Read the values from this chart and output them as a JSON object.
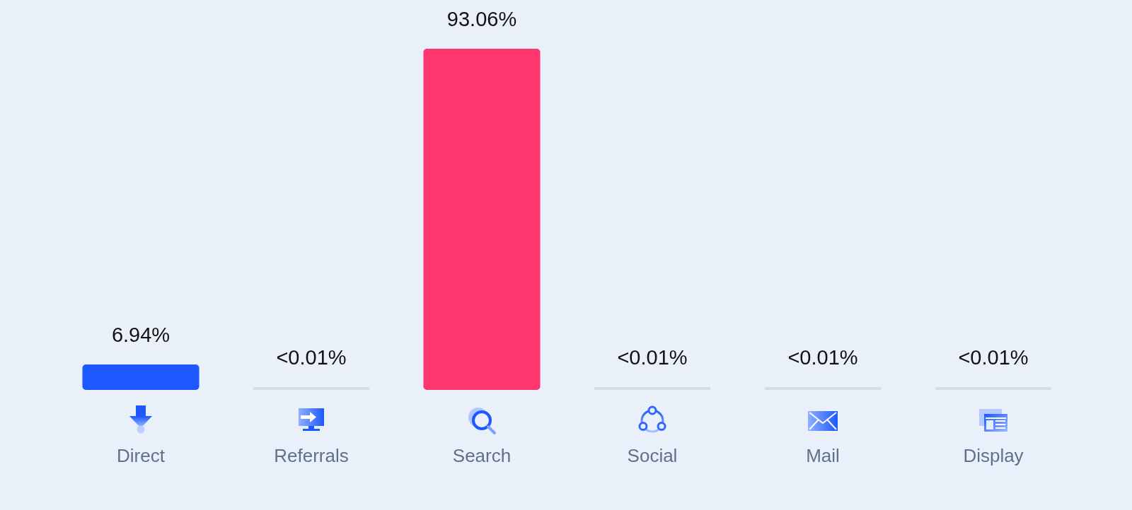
{
  "chart_data": {
    "type": "bar",
    "categories": [
      "Direct",
      "Referrals",
      "Search",
      "Social",
      "Mail",
      "Display"
    ],
    "values": [
      6.94,
      0,
      93.06,
      0,
      0,
      0
    ],
    "value_labels": [
      "6.94%",
      "<0.01%",
      "93.06%",
      "<0.01%",
      "<0.01%",
      "<0.01%"
    ],
    "colors": [
      "#1c58fe",
      "#d5dce6",
      "#ff366e",
      "#d5dce6",
      "#d5dce6",
      "#d5dce6"
    ]
  }
}
